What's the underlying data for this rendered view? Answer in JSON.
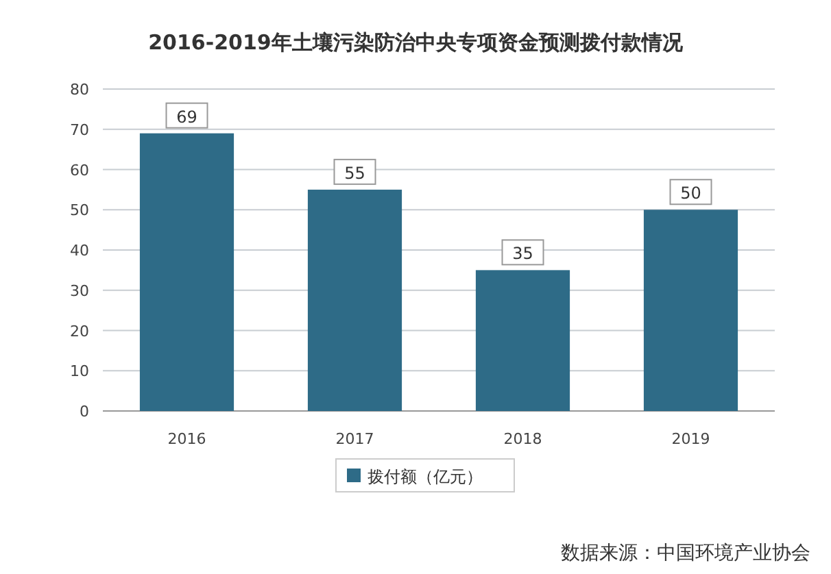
{
  "chart_data": {
    "type": "bar",
    "title": "2016-2019年土壤污染防治中央专项资金预测拨付款情况",
    "categories": [
      "2016",
      "2017",
      "2018",
      "2019"
    ],
    "series": [
      {
        "name": "拨付额（亿元）",
        "color": "#2e6b87",
        "values": [
          69,
          55,
          35,
          50
        ]
      }
    ],
    "ylim": [
      0,
      80
    ],
    "yticks": [
      0,
      10,
      20,
      30,
      40,
      50,
      60,
      70,
      80
    ],
    "grid": "y",
    "legend": "bottom",
    "data_labels": true,
    "annotations": [
      "数据来源：中国环境产业协会"
    ]
  }
}
